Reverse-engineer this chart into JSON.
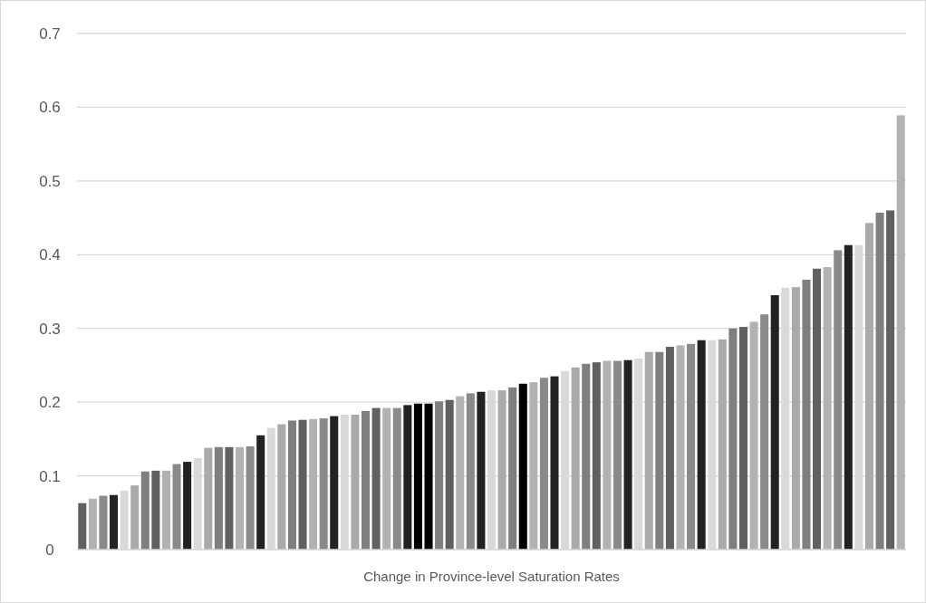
{
  "chart_data": {
    "type": "bar",
    "xlabel": "Change in Province-level Saturation Rates",
    "categories": [
      null,
      null,
      null,
      null,
      null,
      null,
      null,
      null,
      null,
      null,
      null,
      null,
      null,
      null,
      null,
      null,
      null,
      null,
      null,
      null,
      null,
      null,
      null,
      null,
      null,
      null,
      null,
      null,
      null,
      null,
      null,
      null,
      null,
      null,
      null,
      null,
      null,
      null,
      null,
      null,
      null,
      null,
      null,
      null,
      null,
      null,
      null,
      null,
      null,
      null,
      null,
      null,
      null,
      null,
      null,
      null,
      null,
      null,
      null,
      null,
      null,
      null,
      null,
      null,
      null,
      null,
      null,
      null,
      null,
      null,
      null,
      null,
      null,
      null,
      null,
      null,
      null,
      null,
      null
    ],
    "values": [
      0.063,
      0.069,
      0.073,
      0.074,
      0.08,
      0.087,
      0.106,
      0.107,
      0.107,
      0.116,
      0.119,
      0.124,
      0.138,
      0.139,
      0.139,
      0.139,
      0.14,
      0.155,
      0.165,
      0.17,
      0.175,
      0.176,
      0.177,
      0.178,
      0.181,
      0.183,
      0.183,
      0.188,
      0.192,
      0.192,
      0.192,
      0.196,
      0.198,
      0.198,
      0.201,
      0.203,
      0.208,
      0.212,
      0.214,
      0.216,
      0.216,
      0.22,
      0.225,
      0.227,
      0.233,
      0.235,
      0.242,
      0.247,
      0.252,
      0.254,
      0.256,
      0.256,
      0.257,
      0.259,
      0.268,
      0.268,
      0.275,
      0.277,
      0.279,
      0.284,
      0.284,
      0.285,
      0.3,
      0.302,
      0.309,
      0.319,
      0.345,
      0.355,
      0.356,
      0.366,
      0.381,
      0.383,
      0.406,
      0.413,
      0.413,
      0.443,
      0.457,
      0.46,
      0.589
    ],
    "colors": [
      "#606060",
      "#b2b2b2",
      "#8a8a8a",
      "#222222",
      "#d9d9d9",
      "#aaaaaa",
      "#7f7f7f",
      "#606060",
      "#b2b2b2",
      "#8a8a8a",
      "#222222",
      "#d9d9d9",
      "#aaaaaa",
      "#7f7f7f",
      "#606060",
      "#b2b2b2",
      "#8a8a8a",
      "#222222",
      "#d9d9d9",
      "#aaaaaa",
      "#7f7f7f",
      "#606060",
      "#b2b2b2",
      "#8a8a8a",
      "#222222",
      "#d9d9d9",
      "#aaaaaa",
      "#7f7f7f",
      "#606060",
      "#b2b2b2",
      "#8a8a8a",
      "#222222",
      "#000000",
      "#000000",
      "#7f7f7f",
      "#606060",
      "#b2b2b2",
      "#8a8a8a",
      "#222222",
      "#d9d9d9",
      "#aaaaaa",
      "#7f7f7f",
      "#000000",
      "#b2b2b2",
      "#8a8a8a",
      "#222222",
      "#d9d9d9",
      "#aaaaaa",
      "#7f7f7f",
      "#606060",
      "#b2b2b2",
      "#8a8a8a",
      "#222222",
      "#d9d9d9",
      "#aaaaaa",
      "#7f7f7f",
      "#606060",
      "#b2b2b2",
      "#8a8a8a",
      "#222222",
      "#d9d9d9",
      "#aaaaaa",
      "#7f7f7f",
      "#606060",
      "#b2b2b2",
      "#8a8a8a",
      "#222222",
      "#d9d9d9",
      "#aaaaaa",
      "#7f7f7f",
      "#606060",
      "#b2b2b2",
      "#8a8a8a",
      "#222222",
      "#d9d9d9",
      "#aaaaaa",
      "#7f7f7f",
      "#606060",
      "#b2b2b2"
    ],
    "ylim": [
      0,
      0.7
    ],
    "yticks": [
      0,
      0.1,
      0.2,
      0.3,
      0.4,
      0.5,
      0.6,
      0.7
    ],
    "grid": "y"
  }
}
